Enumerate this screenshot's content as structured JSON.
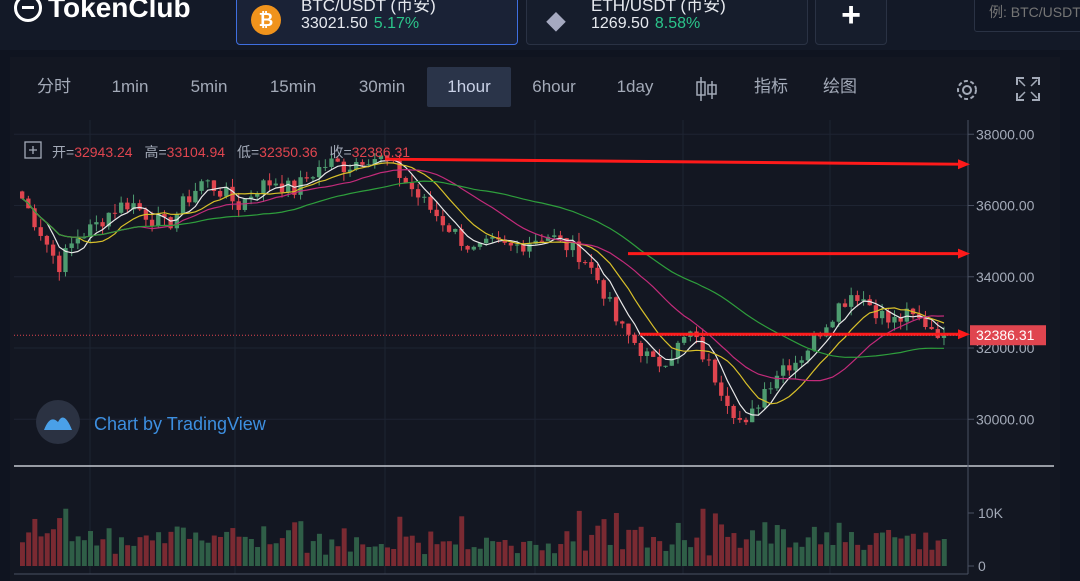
{
  "header": {
    "logo_text": "TokenClub",
    "tickers": [
      {
        "pair": "BTC/USDT (币安)",
        "price": "33021.50",
        "change": "5.17%",
        "coin_color": "#f0931c",
        "coin_symbol": "₿"
      },
      {
        "pair": "ETH/USDT (币安)",
        "price": "1269.50",
        "change": "8.58%",
        "coin_color": "#62688f",
        "coin_symbol": "◆"
      }
    ],
    "add_label": "+",
    "search_placeholder": "例: BTC/USDT"
  },
  "toolbar": {
    "intervals": [
      "分时",
      "1min",
      "5min",
      "15min",
      "30min",
      "1hour",
      "6hour",
      "1day"
    ],
    "active_interval": "1hour",
    "indicators_label": "指标",
    "drawing_label": "绘图",
    "icons": [
      "candles-icon",
      "gear-icon",
      "fullscreen-icon"
    ]
  },
  "legend": {
    "open_label": "开=",
    "open": "32943.24",
    "high_label": "高=",
    "high": "33104.94",
    "low_label": "低=",
    "low": "32350.36",
    "close_label": "收=",
    "close": "32386.31"
  },
  "watermark": "Chart by TradingView",
  "colors": {
    "up": "#4e9c70",
    "down": "#e0454f",
    "ma5": "#e8e8e8",
    "ma10": "#d8c02a",
    "ma20": "#c22b7a",
    "ma60": "#2e9e3c",
    "annotation": "#ff1a1a"
  },
  "chart_data": {
    "type": "candlestick",
    "price_axis": {
      "ticks": [
        "38000.00",
        "36000.00",
        "34000.00",
        "32000.00",
        "30000.00"
      ],
      "range": [
        28800,
        38400
      ]
    },
    "volume_axis": {
      "ticks": [
        "10K",
        "0"
      ]
    },
    "last_price_label": "32386.31",
    "close_path": [
      36200,
      35300,
      34300,
      35100,
      35400,
      35900,
      36100,
      35700,
      35400,
      36100,
      36700,
      36400,
      36000,
      36500,
      36700,
      36400,
      36900,
      37200,
      37100,
      37400,
      37300,
      36800,
      36200,
      35700,
      35200,
      34700,
      34900,
      34800,
      35000,
      35200,
      34900,
      34600,
      33800,
      32600,
      32100,
      31500,
      31900,
      32400,
      31500,
      30600,
      29700,
      30800,
      31500,
      31700,
      32400,
      33100,
      33600,
      33200,
      32700,
      32900,
      32700,
      32386
    ],
    "annotations": [
      {
        "type": "arrow",
        "level": 37300
      },
      {
        "type": "arrow",
        "level": 34650
      },
      {
        "type": "arrow",
        "level": 32386
      }
    ]
  }
}
